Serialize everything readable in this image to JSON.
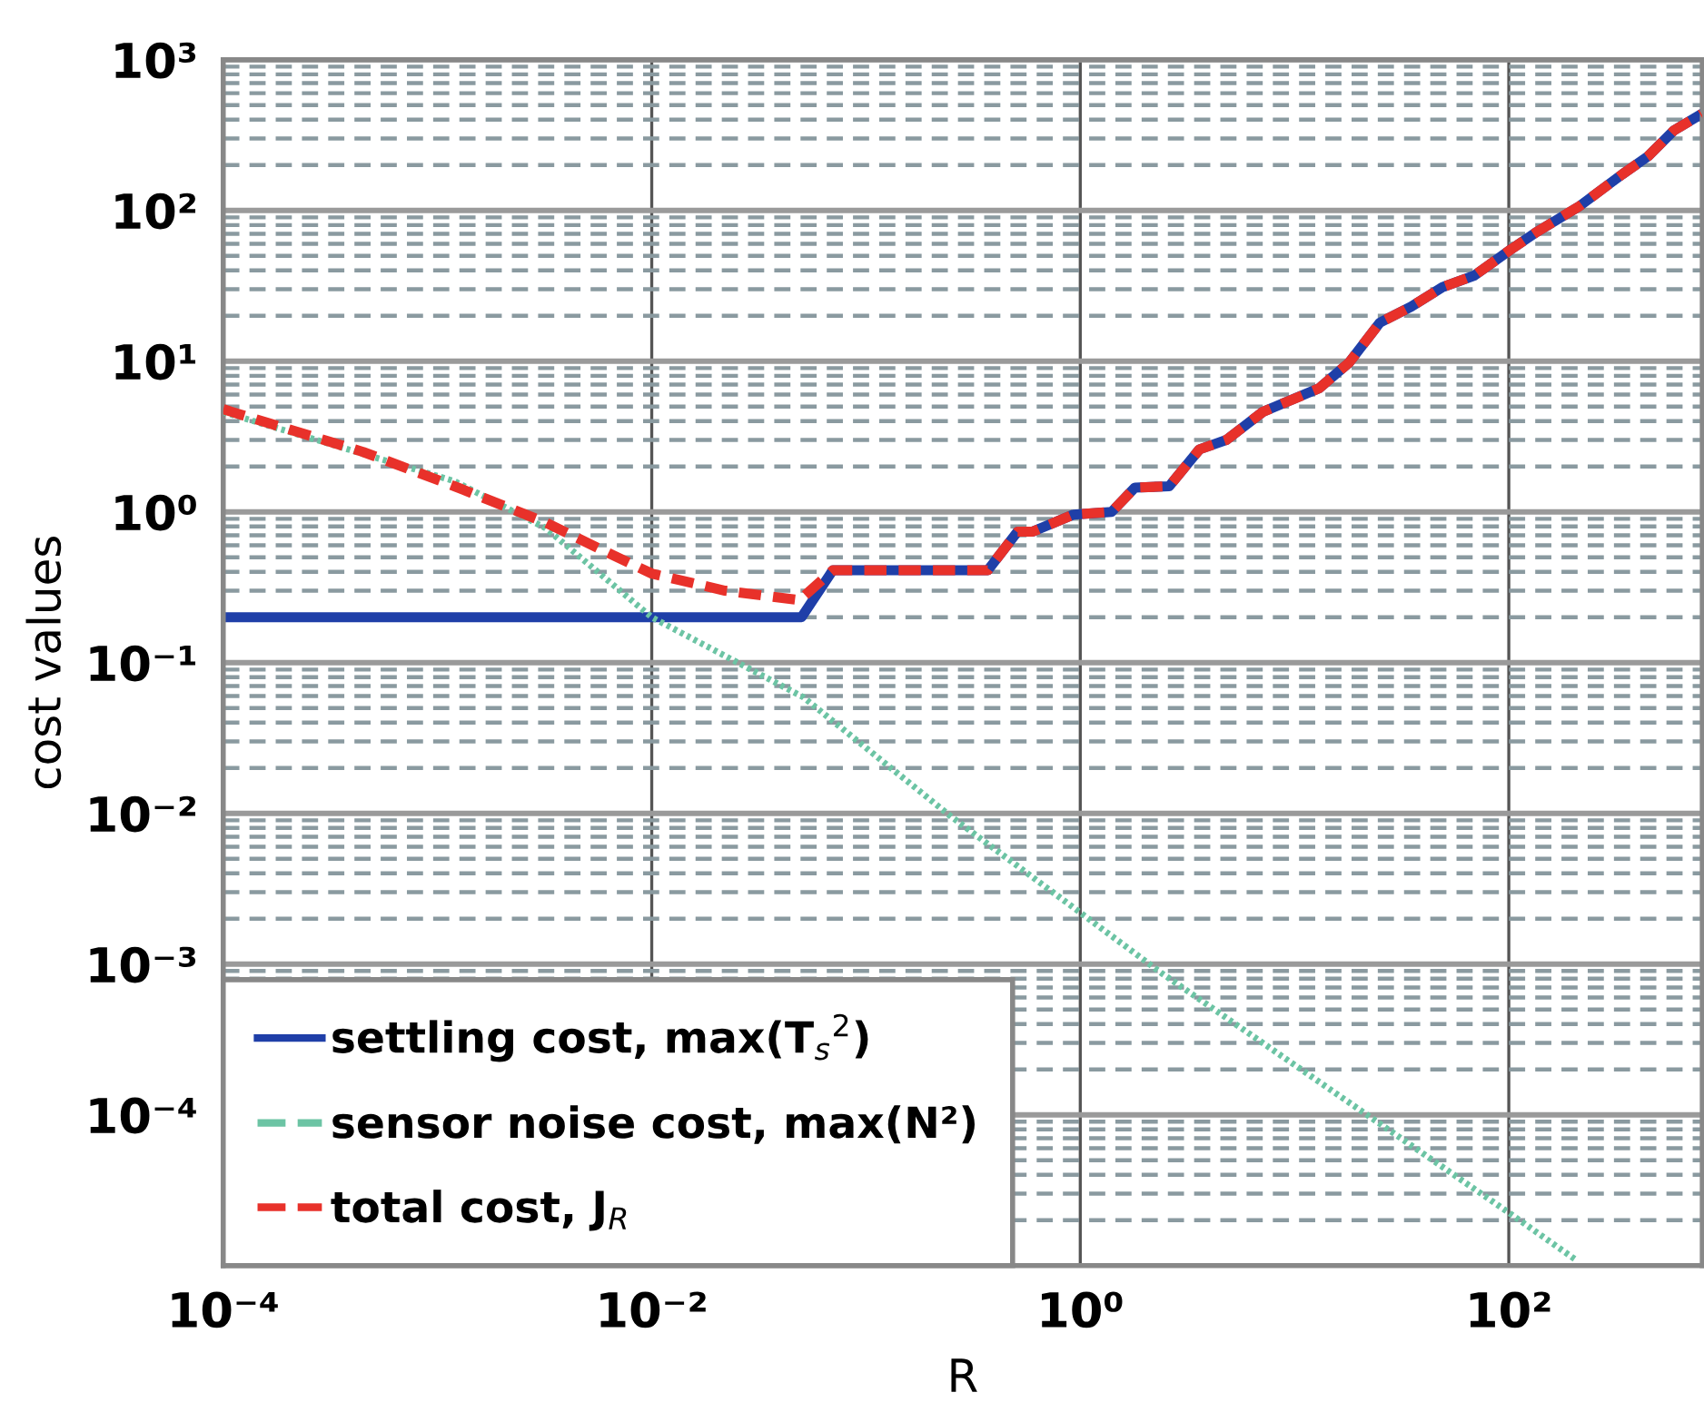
{
  "chart_data": {
    "type": "line",
    "xlabel": "R",
    "ylabel": "cost values",
    "log": "xy",
    "grid": true,
    "legend": "bottom left",
    "xlim": [
      0.0001,
      800
    ],
    "ylim": [
      1e-05,
      1000
    ],
    "xticks": [
      {
        "value": 0.0001,
        "label": "10⁻⁴"
      },
      {
        "value": 0.01,
        "label": "10⁻²"
      },
      {
        "value": 1,
        "label": "10⁰"
      },
      {
        "value": 100,
        "label": "10²"
      }
    ],
    "yticks": [
      {
        "value": 0.0001,
        "label": "10⁻⁴"
      },
      {
        "value": 0.001,
        "label": "10⁻³"
      },
      {
        "value": 0.01,
        "label": "10⁻²"
      },
      {
        "value": 0.1,
        "label": "10⁻¹"
      },
      {
        "value": 1,
        "label": "10⁰"
      },
      {
        "value": 10,
        "label": "10¹"
      },
      {
        "value": 100,
        "label": "10²"
      },
      {
        "value": 1000,
        "label": "10³"
      }
    ],
    "series": [
      {
        "name": "settling cost, max(T$_{s}$$^{2}$)",
        "color": "#1f3fa8",
        "line_style": "solid",
        "x": [
          0.0001,
          0.001,
          0.01,
          0.05,
          0.07,
          0.37,
          0.51,
          0.6,
          0.93,
          1.4,
          1.8,
          2.6,
          3.6,
          4.8,
          7.1,
          13,
          18,
          25,
          35,
          49,
          69,
          102,
          135,
          214,
          339,
          447,
          589,
          794
        ],
        "values": [
          0.2,
          0.2,
          0.2,
          0.2,
          0.41,
          0.41,
          0.74,
          0.74,
          0.96,
          1.0,
          1.45,
          1.48,
          2.6,
          3.0,
          4.6,
          6.6,
          9.8,
          18,
          23,
          31,
          37,
          55,
          72,
          107,
          174,
          229,
          339,
          437
        ]
      },
      {
        "name": "sensor noise cost, max(N²)",
        "color": "#6cc4a4",
        "line_style": "dotted",
        "x": [
          0.0001,
          0.0012,
          0.0032,
          0.01,
          0.051,
          0.25,
          2.4,
          102,
          204
        ],
        "values": [
          4.6,
          1.6,
          0.78,
          0.2,
          0.059,
          0.0095,
          0.00087,
          2.2e-05,
          1.1e-05
        ]
      },
      {
        "name": "total cost, J$_{R}$",
        "color": "#e8312a",
        "line_style": "dashed",
        "x": [
          0.0001,
          0.00045,
          0.0012,
          0.0032,
          0.006,
          0.01,
          0.022,
          0.049,
          0.07,
          0.37,
          0.51,
          0.6,
          0.93,
          1.4,
          1.8,
          2.6,
          3.6,
          4.8,
          7.1,
          13,
          18,
          25,
          35,
          49,
          69,
          102,
          135,
          214,
          339,
          447,
          589,
          794
        ],
        "values": [
          4.8,
          2.5,
          1.48,
          0.85,
          0.55,
          0.39,
          0.3,
          0.26,
          0.41,
          0.41,
          0.74,
          0.74,
          0.96,
          1.0,
          1.45,
          1.48,
          2.6,
          3.0,
          4.6,
          6.6,
          9.8,
          18,
          23,
          31,
          37,
          55,
          72,
          107,
          174,
          229,
          339,
          437
        ]
      }
    ]
  }
}
